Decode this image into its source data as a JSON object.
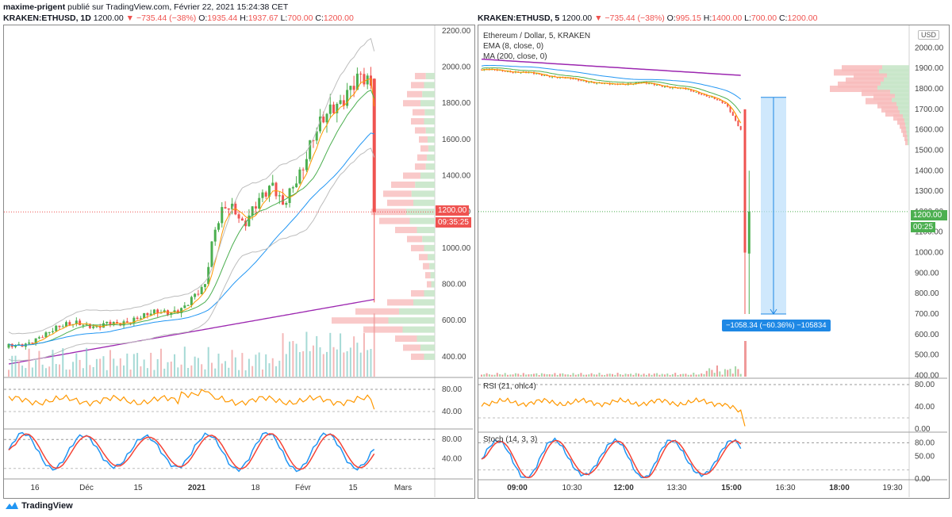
{
  "header": {
    "author": "maxime-prigent",
    "published_text": "publié sur TradingView.com, Février 22, 2021 15:24:38 CET"
  },
  "left_panel": {
    "symbol": "KRAKEN:ETHUSD, 1D",
    "price": "1200.00",
    "change": "▼ −735.44 (−38%)",
    "o_label": "O:",
    "o": "1935.44",
    "h_label": "H:",
    "h": "1937.67",
    "l_label": "L:",
    "l": "700.00",
    "c_label": "C:",
    "c": "1200.00",
    "last_price_tag": "1200.00",
    "countdown_tag": "09:35:25"
  },
  "right_panel": {
    "symbol": "KRAKEN:ETHUSD, 5",
    "price": "1200.00",
    "change": "▼ −735.44 (−38%)",
    "o_label": "O:",
    "o": "995.15",
    "h_label": "H:",
    "h": "1400.00",
    "l_label": "L:",
    "l": "700.00",
    "c_label": "C:",
    "c": "1200.00",
    "legend_title": "Ethereum / Dollar, 5, KRAKEN",
    "legend_ema": "EMA (8, close, 0)",
    "legend_ma": "MA (200, close, 0)",
    "currency_button": "USD",
    "last_price_tag": "1200.00",
    "countdown_tag": "00:25",
    "measure_label": "−1058.34 (−60.36%) −105834",
    "rsi_label": "RSI (21, ohlc4)",
    "stoch_label": "Stoch (14, 3, 3)"
  },
  "footer": {
    "brand": "TradingView"
  },
  "colors": {
    "up": "#4caf50",
    "down": "#ef5350",
    "ema": "#ff9800",
    "ma_green": "#4caf50",
    "ma_blue": "#2196f3",
    "ma_purple": "#9c27b0",
    "bb": "#bdbdbd",
    "rsi": "#ff9800",
    "stoch_k": "#2196f3",
    "stoch_d": "#f44336",
    "measure": "#1e88e5"
  },
  "chart_data": [
    {
      "type": "candlestick",
      "title": "KRAKEN:ETHUSD, 1D",
      "y_ticks": [
        400,
        600,
        800,
        1000,
        1200,
        1400,
        1600,
        1800,
        2000,
        2200
      ],
      "ylim": [
        290,
        2230
      ],
      "x_ticks": [
        "16",
        "Déc",
        "15",
        "2021",
        "18",
        "Févr",
        "15",
        "Mars"
      ],
      "close_approx": [
        460,
        470,
        480,
        500,
        520,
        560,
        590,
        600,
        570,
        550,
        580,
        590,
        600,
        610,
        620,
        640,
        650,
        660,
        680,
        730,
        770,
        1100,
        1260,
        1230,
        1100,
        1200,
        1300,
        1380,
        1250,
        1320,
        1400,
        1600,
        1750,
        1800,
        1780,
        1850,
        1950,
        1935,
        1200
      ],
      "last_candle": {
        "open": 1935.44,
        "high": 1937.67,
        "low": 700.0,
        "close": 1200.0
      },
      "rsi": {
        "ticks": [
          40,
          80
        ]
      },
      "stoch": {
        "ticks": [
          40,
          80
        ]
      }
    },
    {
      "type": "candlestick",
      "title": "KRAKEN:ETHUSD, 5",
      "y_ticks": [
        400,
        500,
        600,
        700,
        800,
        900,
        1000,
        1100,
        1200,
        1300,
        1400,
        1500,
        1600,
        1700,
        1800,
        1900,
        2000
      ],
      "ylim": [
        390,
        2110
      ],
      "x_ticks": [
        "09:00",
        "10:30",
        "12:00",
        "13:30",
        "15:00",
        "16:30",
        "18:00",
        "19:30"
      ],
      "close_approx": [
        1895,
        1890,
        1885,
        1880,
        1870,
        1860,
        1850,
        1840,
        1830,
        1820,
        1825,
        1830,
        1820,
        1810,
        1800,
        1780,
        1760,
        1720,
        1600,
        1000,
        1200
      ],
      "last_candle": {
        "open": 995.15,
        "high": 1400.0,
        "low": 700.0,
        "close": 1200.0
      },
      "measure": {
        "from": 1758.34,
        "to": 700.0,
        "change": -1058.34,
        "percent": -60.36
      },
      "rsi": {
        "ticks": [
          0,
          40,
          80
        ]
      },
      "stoch": {
        "ticks": [
          0,
          50,
          80
        ]
      }
    }
  ]
}
